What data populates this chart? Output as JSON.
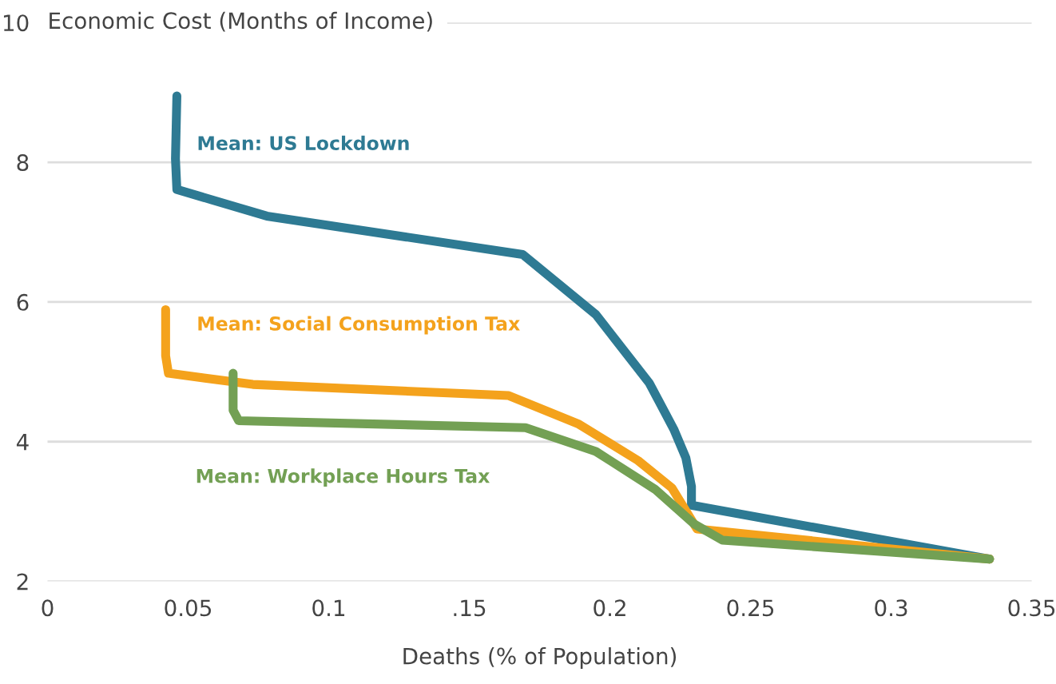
{
  "chart_data": {
    "type": "line",
    "xlabel": "Deaths (% of Population)",
    "ylabel": "Economic Cost (Months of Income)",
    "xlim": [
      0,
      0.35
    ],
    "ylim": [
      2,
      10
    ],
    "xticks": [
      0,
      0.05,
      0.1,
      {
        "value": 0.15,
        "label": ".15"
      },
      0.2,
      0.25,
      0.3,
      0.35
    ],
    "yticks": [
      2,
      4,
      6,
      8,
      10
    ],
    "grid": "y",
    "line_style": "solid",
    "marker": "none",
    "series": [
      {
        "name": "Mean: US Lockdown",
        "color": "#2e7a93",
        "x": [
          0.046,
          0.0455,
          0.046,
          0.078,
          0.169,
          0.195,
          0.214,
          0.2227,
          0.227,
          0.229,
          0.229,
          0.335
        ],
        "values": [
          8.95,
          8.05,
          7.61,
          7.23,
          6.68,
          5.82,
          4.84,
          4.18,
          3.77,
          3.36,
          3.09,
          2.32
        ]
      },
      {
        "name": "Mean: Social Consumption Tax",
        "color": "#f4a21c",
        "x": [
          0.042,
          0.042,
          0.043,
          0.073,
          0.164,
          0.189,
          0.21,
          0.222,
          0.231,
          0.335
        ],
        "values": [
          5.89,
          5.23,
          4.98,
          4.82,
          4.66,
          4.25,
          3.73,
          3.34,
          2.75,
          2.32
        ]
      },
      {
        "name": "Mean: Workplace Hours Tax",
        "color": "#73a054",
        "x": [
          0.066,
          0.066,
          0.068,
          0.17,
          0.195,
          0.216,
          0.23,
          0.24,
          0.335
        ],
        "values": [
          4.98,
          4.45,
          4.3,
          4.2,
          3.86,
          3.32,
          2.82,
          2.59,
          2.32
        ]
      }
    ]
  }
}
